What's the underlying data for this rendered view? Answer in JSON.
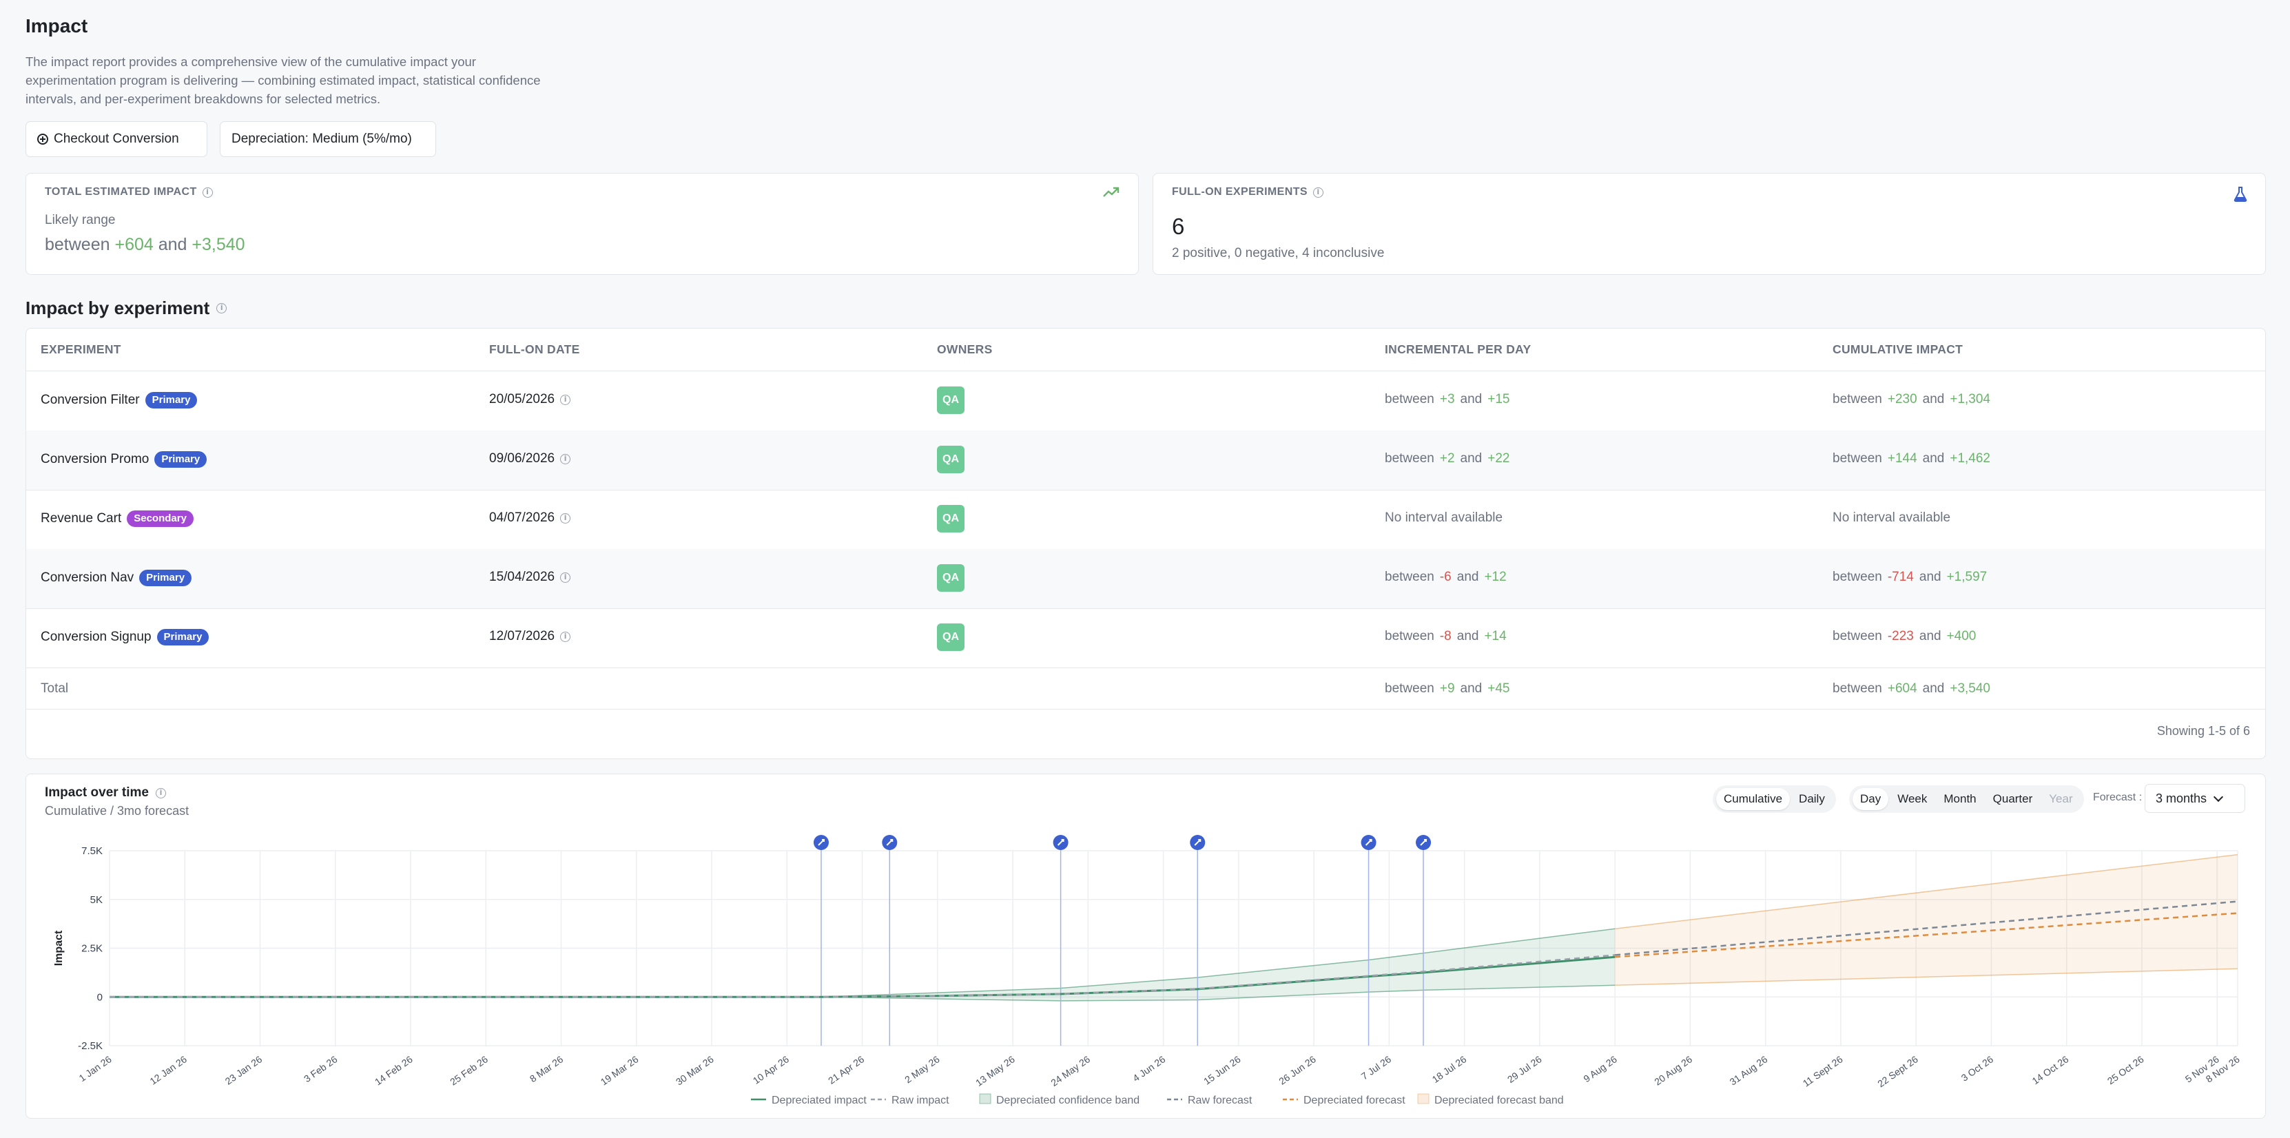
{
  "page": {
    "title": "Impact",
    "description": "The impact report provides a comprehensive view of the cumulative impact your experimentation program is delivering — combining estimated impact, statistical confidence intervals, and per-experiment breakdowns for selected metrics."
  },
  "filters": {
    "metric_chip": "Checkout Conversion",
    "depreciation_chip": "Depreciation: Medium (5%/mo)"
  },
  "total_impact": {
    "label": "TOTAL ESTIMATED IMPACT",
    "subtitle": "Likely range",
    "prefix": "between",
    "low": "+604",
    "conj": "and",
    "high": "+3,540",
    "icon": "trending-up-icon"
  },
  "full_on": {
    "label": "FULL-ON EXPERIMENTS",
    "count": "6",
    "summary": "2 positive, 0 negative, 4 inconclusive",
    "icon": "flask-icon"
  },
  "impact_table": {
    "title": "Impact by experiment",
    "columns": [
      "EXPERIMENT",
      "FULL-ON DATE",
      "OWNERS",
      "INCREMENTAL PER DAY",
      "CUMULATIVE IMPACT"
    ],
    "rows": [
      {
        "name": "Conversion Filter",
        "badge": "Primary",
        "date": "20/05/2026",
        "owner": "QA",
        "inc": {
          "low": "+3",
          "high": "+15",
          "low_color": "green"
        },
        "cum": {
          "low": "+230",
          "high": "+1,304",
          "low_color": "green"
        }
      },
      {
        "name": "Conversion Promo",
        "badge": "Primary",
        "date": "09/06/2026",
        "owner": "QA",
        "inc": {
          "low": "+2",
          "high": "+22",
          "low_color": "green"
        },
        "cum": {
          "low": "+144",
          "high": "+1,462",
          "low_color": "green"
        }
      },
      {
        "name": "Revenue Cart",
        "badge": "Secondary",
        "date": "04/07/2026",
        "owner": "QA",
        "inc_text": "No interval available",
        "cum_text": "No interval available"
      },
      {
        "name": "Conversion Nav",
        "badge": "Primary",
        "date": "15/04/2026",
        "owner": "QA",
        "inc": {
          "low": "-6",
          "high": "+12",
          "low_color": "red"
        },
        "cum": {
          "low": "-714",
          "high": "+1,597",
          "low_color": "red"
        }
      },
      {
        "name": "Conversion Signup",
        "badge": "Primary",
        "date": "12/07/2026",
        "owner": "QA",
        "inc": {
          "low": "-8",
          "high": "+14",
          "low_color": "red"
        },
        "cum": {
          "low": "-223",
          "high": "+400",
          "low_color": "red"
        }
      }
    ],
    "total": {
      "label": "Total",
      "inc_low": "+9",
      "inc_high": "+45",
      "cum_low": "+604",
      "cum_high": "+3,540"
    },
    "between": "between",
    "and": "and",
    "showing": "Showing 1-5 of 6"
  },
  "chart_panel": {
    "title": "Impact over time",
    "subtitle": "Cumulative / 3mo forecast",
    "mode_tabs": [
      "Cumulative",
      "Daily"
    ],
    "mode_active": "Cumulative",
    "granularity_tabs": [
      "Day",
      "Week",
      "Month",
      "Quarter",
      "Year"
    ],
    "granularity_active": "Day",
    "granularity_disabled": "Year",
    "forecast_label": "Forecast :",
    "forecast_value": "3 months"
  },
  "chart_data": {
    "type": "line",
    "ylabel": "Impact",
    "y_ticks": [
      "7.5K",
      "5K",
      "2.5K",
      "0",
      "-2.5K"
    ],
    "y_tick_values": [
      7500,
      5000,
      2500,
      0,
      -2500
    ],
    "ylim": [
      -2500,
      7500
    ],
    "x_range": [
      "2026-01-01",
      "2026-11-08"
    ],
    "x_ticks": [
      {
        "label": "1 Jan 26",
        "date": "2026-01-01"
      },
      {
        "label": "12 Jan 26",
        "date": "2026-01-12"
      },
      {
        "label": "23 Jan 26",
        "date": "2026-01-23"
      },
      {
        "label": "3 Feb 26",
        "date": "2026-02-03"
      },
      {
        "label": "14 Feb 26",
        "date": "2026-02-14"
      },
      {
        "label": "25 Feb 26",
        "date": "2026-02-25"
      },
      {
        "label": "8 Mar 26",
        "date": "2026-03-08"
      },
      {
        "label": "19 Mar 26",
        "date": "2026-03-19"
      },
      {
        "label": "30 Mar 26",
        "date": "2026-03-30"
      },
      {
        "label": "10 Apr 26",
        "date": "2026-04-10"
      },
      {
        "label": "21 Apr 26",
        "date": "2026-04-21"
      },
      {
        "label": "2 May 26",
        "date": "2026-05-02"
      },
      {
        "label": "13 May 26",
        "date": "2026-05-13"
      },
      {
        "label": "24 May 26",
        "date": "2026-05-24"
      },
      {
        "label": "4 Jun 26",
        "date": "2026-06-04"
      },
      {
        "label": "15 Jun 26",
        "date": "2026-06-15"
      },
      {
        "label": "26 Jun 26",
        "date": "2026-06-26"
      },
      {
        "label": "7 Jul 26",
        "date": "2026-07-07"
      },
      {
        "label": "18 Jul 26",
        "date": "2026-07-18"
      },
      {
        "label": "29 Jul 26",
        "date": "2026-07-29"
      },
      {
        "label": "9 Aug 26",
        "date": "2026-08-09"
      },
      {
        "label": "20 Aug 26",
        "date": "2026-08-20"
      },
      {
        "label": "31 Aug 26",
        "date": "2026-08-31"
      },
      {
        "label": "11 Sept 26",
        "date": "2026-09-11"
      },
      {
        "label": "22 Sept 26",
        "date": "2026-09-22"
      },
      {
        "label": "3 Oct 26",
        "date": "2026-10-03"
      },
      {
        "label": "14 Oct 26",
        "date": "2026-10-14"
      },
      {
        "label": "25 Oct 26",
        "date": "2026-10-25"
      },
      {
        "label": "5 Nov 26",
        "date": "2026-11-05"
      },
      {
        "label": "8 Nov 26",
        "date": "2026-11-08"
      }
    ],
    "experiment_markers": [
      "2026-04-15",
      "2026-04-25",
      "2026-05-20",
      "2026-06-09",
      "2026-07-04",
      "2026-07-12"
    ],
    "forecast_start": "2026-08-09",
    "series": [
      {
        "name": "Depreciated impact",
        "style": "solid",
        "color": "#3f8f6b",
        "points": [
          [
            "2026-01-01",
            0
          ],
          [
            "2026-04-15",
            0
          ],
          [
            "2026-05-01",
            50
          ],
          [
            "2026-05-20",
            150
          ],
          [
            "2026-06-09",
            400
          ],
          [
            "2026-07-04",
            1050
          ],
          [
            "2026-07-12",
            1250
          ],
          [
            "2026-08-09",
            2050
          ]
        ]
      },
      {
        "name": "Raw impact",
        "style": "dashed",
        "color": "#9aa1ab",
        "points": [
          [
            "2026-01-01",
            0
          ],
          [
            "2026-04-15",
            0
          ],
          [
            "2026-05-01",
            50
          ],
          [
            "2026-05-20",
            150
          ],
          [
            "2026-06-09",
            420
          ],
          [
            "2026-07-04",
            1080
          ],
          [
            "2026-07-12",
            1300
          ],
          [
            "2026-08-09",
            2150
          ]
        ]
      },
      {
        "name": "Raw forecast",
        "style": "dashed",
        "color": "#7b8794",
        "points": [
          [
            "2026-08-09",
            2150
          ],
          [
            "2026-11-08",
            4900
          ]
        ]
      },
      {
        "name": "Depreciated forecast",
        "style": "dashed",
        "color": "#e08a3c",
        "points": [
          [
            "2026-08-09",
            2050
          ],
          [
            "2026-11-08",
            4300
          ]
        ]
      }
    ],
    "bands": [
      {
        "name": "Depreciated confidence band",
        "color": "#3f8f6b",
        "upper": [
          [
            "2026-04-15",
            0
          ],
          [
            "2026-05-20",
            450
          ],
          [
            "2026-06-09",
            1000
          ],
          [
            "2026-07-04",
            1900
          ],
          [
            "2026-07-12",
            2250
          ],
          [
            "2026-08-09",
            3500
          ]
        ],
        "lower": [
          [
            "2026-04-15",
            0
          ],
          [
            "2026-05-20",
            -200
          ],
          [
            "2026-06-09",
            -150
          ],
          [
            "2026-07-04",
            250
          ],
          [
            "2026-07-12",
            350
          ],
          [
            "2026-08-09",
            600
          ]
        ]
      },
      {
        "name": "Depreciated forecast band",
        "color": "#e8a25a",
        "upper": [
          [
            "2026-08-09",
            3500
          ],
          [
            "2026-11-08",
            7300
          ]
        ],
        "lower": [
          [
            "2026-08-09",
            600
          ],
          [
            "2026-11-08",
            1450
          ]
        ]
      }
    ],
    "legend": [
      {
        "name": "Depreciated impact",
        "kind": "solid",
        "color": "#3f8f6b"
      },
      {
        "name": "Raw impact",
        "kind": "dashed",
        "color": "#9aa1ab"
      },
      {
        "name": "Depreciated confidence band",
        "kind": "band",
        "color": "#3f8f6b"
      },
      {
        "name": "Raw forecast",
        "kind": "dashed",
        "color": "#7b8794"
      },
      {
        "name": "Depreciated forecast",
        "kind": "dashed",
        "color": "#e08a3c"
      },
      {
        "name": "Depreciated forecast band",
        "kind": "band",
        "color": "#e8a25a"
      }
    ],
    "grid": true,
    "legend_position": "bottom"
  }
}
